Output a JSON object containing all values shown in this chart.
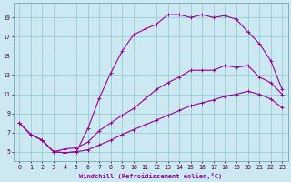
{
  "background_color": "#cce8f0",
  "grid_color": "#99ccd9",
  "line_color": "#990099",
  "xlim": [
    -0.5,
    23.5
  ],
  "ylim": [
    4.0,
    20.5
  ],
  "xticks": [
    0,
    1,
    2,
    3,
    4,
    5,
    6,
    7,
    8,
    9,
    10,
    11,
    12,
    13,
    14,
    15,
    16,
    17,
    18,
    19,
    20,
    21,
    22,
    23
  ],
  "yticks": [
    5,
    7,
    9,
    11,
    13,
    15,
    17,
    19
  ],
  "xlabel": "Windchill (Refroidissement éolien,°C)",
  "series1_x": [
    0,
    1,
    2,
    3,
    4,
    5,
    6,
    7,
    8,
    9,
    10,
    11,
    12,
    13,
    14,
    15,
    16,
    17,
    18,
    19,
    20,
    21,
    22,
    23
  ],
  "series1_y": [
    8.0,
    6.8,
    6.2,
    5.0,
    4.9,
    5.0,
    7.4,
    10.6,
    13.2,
    15.5,
    17.2,
    17.8,
    18.3,
    19.3,
    19.3,
    19.0,
    19.3,
    19.0,
    19.2,
    18.8,
    17.5,
    16.3,
    14.5,
    11.5
  ],
  "series2_x": [
    0,
    1,
    2,
    3,
    4,
    5,
    6,
    7,
    8,
    9,
    10,
    11,
    12,
    13,
    14,
    15,
    16,
    17,
    18,
    19,
    20,
    21,
    22,
    23
  ],
  "series2_y": [
    8.0,
    6.8,
    6.2,
    5.0,
    5.3,
    5.4,
    6.0,
    7.2,
    8.0,
    8.8,
    9.5,
    10.5,
    11.5,
    12.2,
    12.8,
    13.5,
    13.5,
    13.5,
    14.0,
    13.8,
    14.0,
    12.8,
    12.2,
    11.0
  ],
  "series3_x": [
    0,
    1,
    2,
    3,
    4,
    5,
    6,
    7,
    8,
    9,
    10,
    11,
    12,
    13,
    14,
    15,
    16,
    17,
    18,
    19,
    20,
    21,
    22,
    23
  ],
  "series3_y": [
    8.0,
    6.8,
    6.2,
    5.0,
    4.9,
    5.0,
    5.2,
    5.7,
    6.2,
    6.8,
    7.3,
    7.8,
    8.3,
    8.8,
    9.3,
    9.8,
    10.1,
    10.4,
    10.8,
    11.0,
    11.3,
    11.0,
    10.5,
    9.6
  ]
}
